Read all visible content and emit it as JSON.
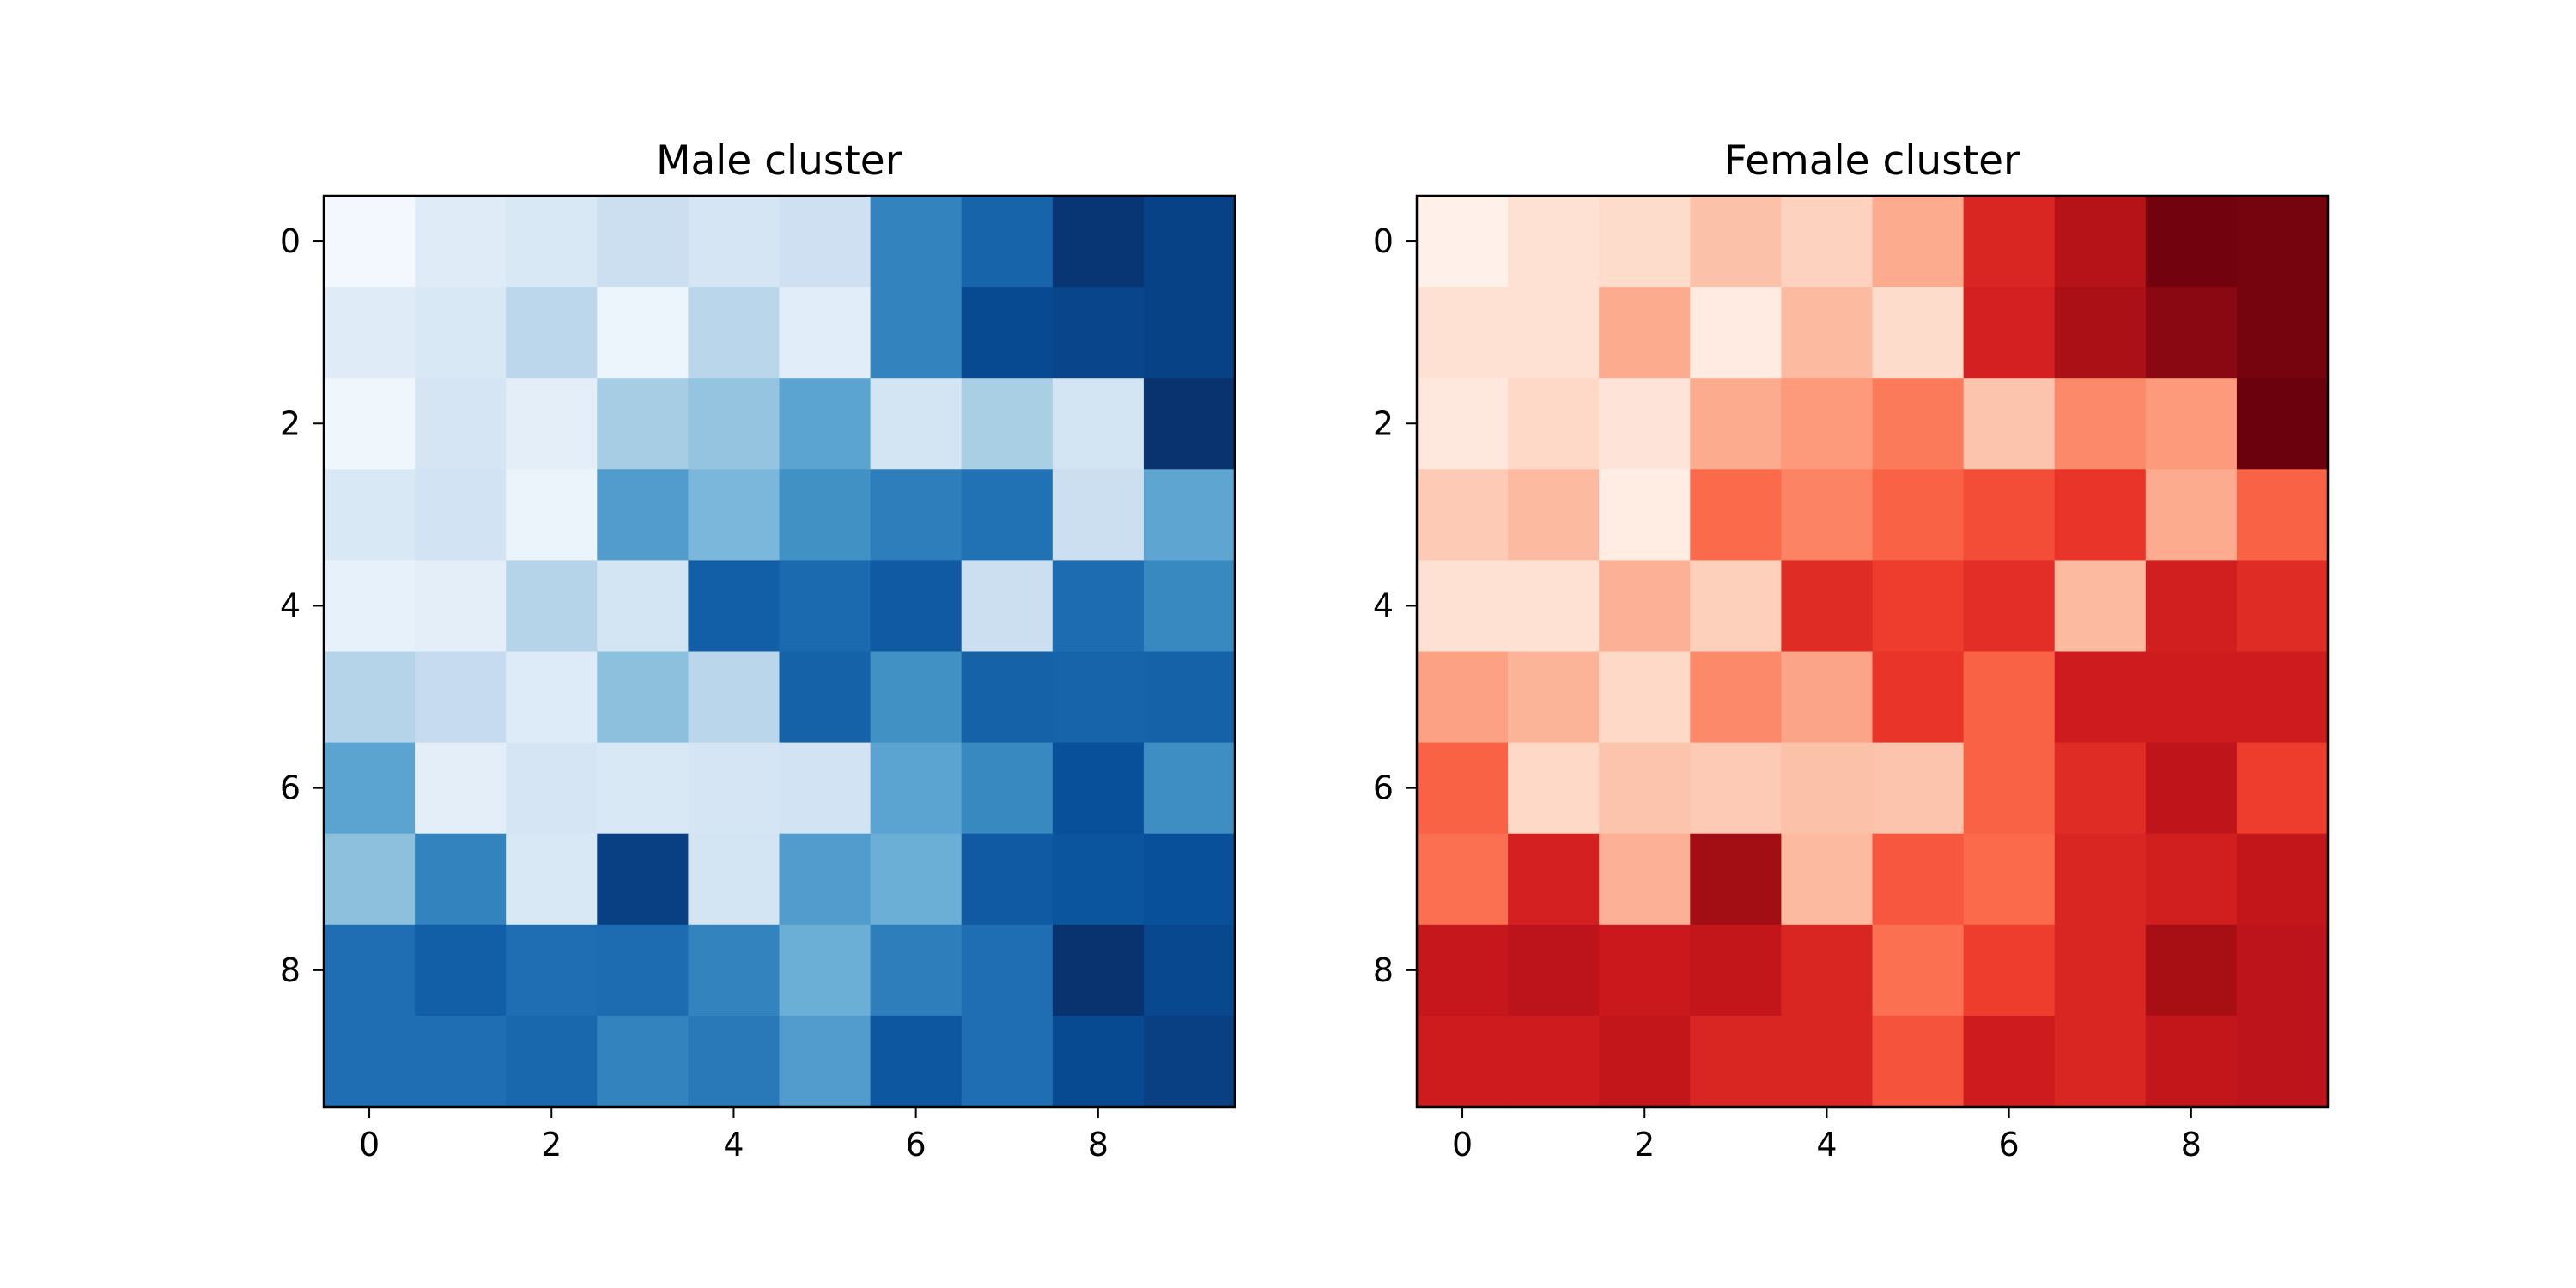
{
  "chart_data": [
    {
      "type": "heatmap",
      "title": "Male cluster",
      "colormap": "Blues",
      "x_ticks": [
        "0",
        "2",
        "4",
        "6",
        "8"
      ],
      "y_ticks": [
        "0",
        "2",
        "4",
        "6",
        "8"
      ],
      "xlim": [
        -0.5,
        9.5
      ],
      "ylim": [
        9.5,
        -0.5
      ],
      "vmin": 0,
      "vmax": 1,
      "grid": false,
      "values": [
        [
          0.02,
          0.12,
          0.15,
          0.22,
          0.17,
          0.21,
          0.68,
          0.8,
          0.98,
          0.93
        ],
        [
          0.12,
          0.15,
          0.28,
          0.05,
          0.29,
          0.11,
          0.68,
          0.9,
          0.92,
          0.93
        ],
        [
          0.04,
          0.17,
          0.1,
          0.35,
          0.4,
          0.55,
          0.18,
          0.34,
          0.18,
          0.99
        ],
        [
          0.15,
          0.19,
          0.06,
          0.58,
          0.46,
          0.63,
          0.7,
          0.75,
          0.22,
          0.54
        ],
        [
          0.08,
          0.1,
          0.3,
          0.18,
          0.82,
          0.78,
          0.84,
          0.22,
          0.77,
          0.66
        ],
        [
          0.3,
          0.25,
          0.13,
          0.42,
          0.29,
          0.81,
          0.63,
          0.81,
          0.8,
          0.81
        ],
        [
          0.55,
          0.1,
          0.17,
          0.15,
          0.17,
          0.19,
          0.55,
          0.66,
          0.88,
          0.64
        ],
        [
          0.42,
          0.68,
          0.15,
          0.94,
          0.18,
          0.58,
          0.5,
          0.84,
          0.86,
          0.88
        ],
        [
          0.76,
          0.82,
          0.76,
          0.77,
          0.68,
          0.5,
          0.7,
          0.76,
          0.99,
          0.91
        ],
        [
          0.76,
          0.76,
          0.79,
          0.68,
          0.72,
          0.58,
          0.85,
          0.76,
          0.9,
          0.94
        ]
      ]
    },
    {
      "type": "heatmap",
      "title": "Female cluster",
      "colormap": "Reds",
      "x_ticks": [
        "0",
        "2",
        "4",
        "6",
        "8"
      ],
      "y_ticks": [
        "0",
        "2",
        "4",
        "6",
        "8"
      ],
      "xlim": [
        -0.5,
        9.5
      ],
      "ylim": [
        9.5,
        -0.5
      ],
      "vmin": 0,
      "vmax": 1,
      "grid": false,
      "values": [
        [
          0.03,
          0.12,
          0.14,
          0.23,
          0.17,
          0.3,
          0.7,
          0.82,
          0.98,
          0.97
        ],
        [
          0.12,
          0.12,
          0.3,
          0.06,
          0.25,
          0.14,
          0.72,
          0.86,
          0.93,
          0.97
        ],
        [
          0.08,
          0.15,
          0.1,
          0.3,
          0.35,
          0.45,
          0.22,
          0.4,
          0.35,
          0.99
        ],
        [
          0.2,
          0.25,
          0.05,
          0.5,
          0.42,
          0.52,
          0.58,
          0.65,
          0.3,
          0.52
        ],
        [
          0.12,
          0.12,
          0.28,
          0.18,
          0.68,
          0.62,
          0.67,
          0.25,
          0.73,
          0.68
        ],
        [
          0.33,
          0.27,
          0.15,
          0.4,
          0.32,
          0.65,
          0.52,
          0.74,
          0.74,
          0.74
        ],
        [
          0.52,
          0.15,
          0.22,
          0.2,
          0.23,
          0.22,
          0.52,
          0.68,
          0.79,
          0.62
        ],
        [
          0.48,
          0.72,
          0.28,
          0.88,
          0.25,
          0.55,
          0.5,
          0.7,
          0.73,
          0.78
        ],
        [
          0.77,
          0.8,
          0.75,
          0.78,
          0.7,
          0.48,
          0.62,
          0.7,
          0.87,
          0.8
        ],
        [
          0.74,
          0.74,
          0.78,
          0.7,
          0.7,
          0.56,
          0.74,
          0.7,
          0.78,
          0.8
        ]
      ]
    }
  ]
}
